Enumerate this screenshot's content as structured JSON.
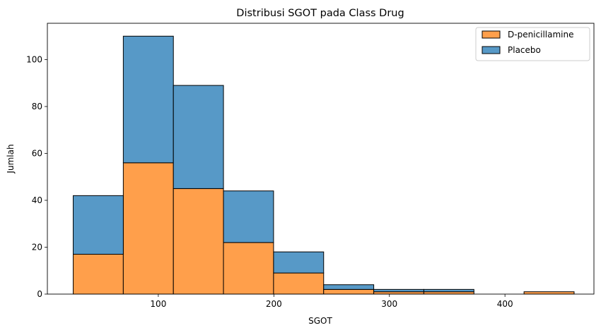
{
  "chart_data": {
    "type": "bar",
    "stacked": true,
    "histogram": true,
    "title": "Distribusi SGOT pada Class Drug",
    "xlabel": "SGOT",
    "ylabel": "Jumlah",
    "xlim": [
      4,
      477
    ],
    "ylim": [
      0,
      115.5
    ],
    "xticks": [
      100,
      200,
      300,
      400
    ],
    "yticks": [
      0,
      20,
      40,
      60,
      80,
      100
    ],
    "bin_edges": [
      26.35,
      69.7,
      113.05,
      156.4,
      199.75,
      243.1,
      286.45,
      329.8,
      373.15,
      416.5,
      459.85
    ],
    "series": [
      {
        "name": "D-penicillamine",
        "color": "#ff9f4b",
        "values": [
          17,
          56,
          45,
          22,
          9,
          2,
          1,
          1,
          0,
          1
        ]
      },
      {
        "name": "Placebo",
        "color": "#5799c7",
        "values": [
          25,
          54,
          44,
          22,
          9,
          2,
          1,
          1,
          0,
          0
        ]
      }
    ],
    "legend_position": "top-right",
    "grid": false
  }
}
